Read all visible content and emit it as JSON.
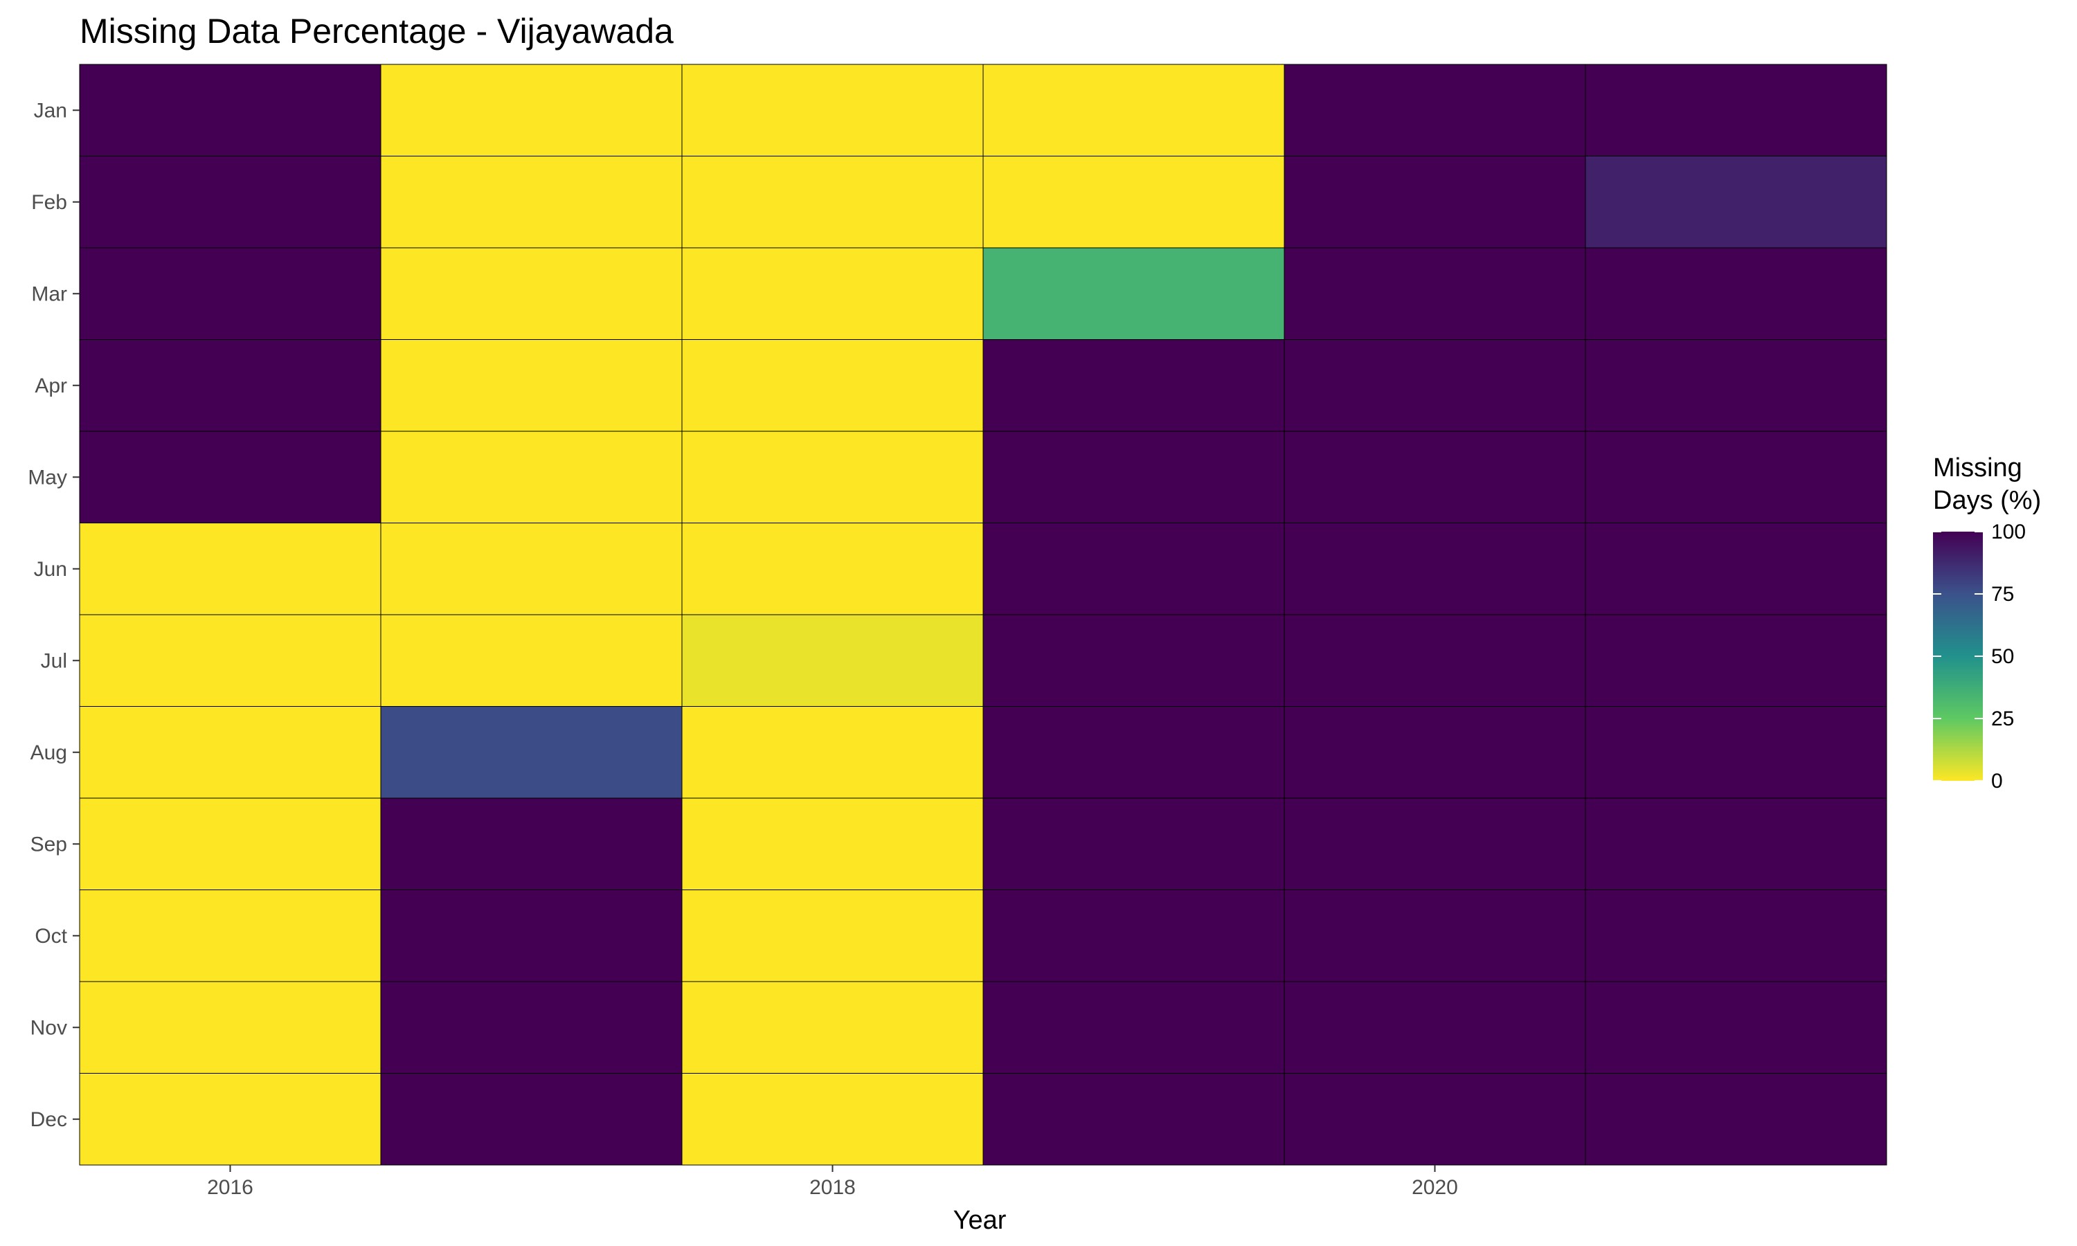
{
  "chart_data": {
    "type": "heatmap",
    "title": "Missing Data Percentage - Vijayawada",
    "xlabel": "Year",
    "ylabel": "",
    "x": [
      2016,
      2017,
      2018,
      2019,
      2020,
      2021
    ],
    "x_tick_labels": [
      "2016",
      "2018",
      "2020"
    ],
    "x_tick_values": [
      2016,
      2018,
      2020
    ],
    "y": [
      "Jan",
      "Feb",
      "Mar",
      "Apr",
      "May",
      "Jun",
      "Jul",
      "Aug",
      "Sep",
      "Oct",
      "Nov",
      "Dec"
    ],
    "values": [
      [
        100,
        0,
        0,
        0,
        100,
        100
      ],
      [
        100,
        0,
        0,
        0,
        100,
        90
      ],
      [
        100,
        0,
        0,
        35,
        100,
        100
      ],
      [
        100,
        0,
        0,
        100,
        100,
        100
      ],
      [
        100,
        0,
        0,
        100,
        100,
        100
      ],
      [
        0,
        0,
        0,
        100,
        100,
        100
      ],
      [
        0,
        0,
        3,
        100,
        100,
        100
      ],
      [
        0,
        77,
        0,
        100,
        100,
        100
      ],
      [
        0,
        100,
        0,
        100,
        100,
        100
      ],
      [
        0,
        100,
        0,
        100,
        100,
        100
      ],
      [
        0,
        100,
        0,
        100,
        100,
        100
      ],
      [
        0,
        100,
        0,
        100,
        100,
        100
      ]
    ],
    "colorbar": {
      "title_lines": [
        "Missing",
        "Days (%)"
      ],
      "range": [
        0,
        100
      ],
      "ticks": [
        0,
        25,
        50,
        75,
        100
      ],
      "tick_labels": [
        "0",
        "25",
        "50",
        "75",
        "100"
      ],
      "colorscale": "viridis-reversed",
      "colors": [
        "#fde725",
        "#5ec962",
        "#21918c",
        "#3b528b",
        "#440154"
      ]
    },
    "grid": false,
    "legend_position": "right"
  }
}
